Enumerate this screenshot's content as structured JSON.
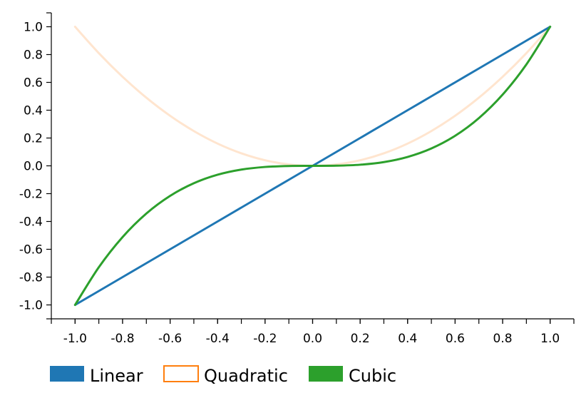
{
  "chart_data": {
    "type": "line",
    "xlim": [
      -1.1,
      1.1
    ],
    "ylim": [
      -1.1,
      1.1
    ],
    "x_ticks": [
      -1.0,
      -0.8,
      -0.6,
      -0.4,
      -0.2,
      0.0,
      0.2,
      0.4,
      0.6,
      0.8,
      1.0
    ],
    "x_tick_labels": [
      "-1.0",
      "-0.8",
      "-0.6",
      "-0.4",
      "-0.2",
      "0.0",
      "0.2",
      "0.4",
      "0.6",
      "0.8",
      "1.0"
    ],
    "y_ticks": [
      1.0,
      0.8,
      0.6,
      0.4,
      0.2,
      0.0,
      -0.2,
      -0.4,
      -0.6,
      -0.8,
      -1.0
    ],
    "y_tick_labels": [
      "1.0",
      "0.8",
      "0.6",
      "0.4",
      "0.2",
      "0.0",
      "-0.2",
      "-0.4",
      "-0.6",
      "-0.8",
      "-1.0"
    ],
    "x": [
      -1.0,
      -0.9,
      -0.8,
      -0.7,
      -0.6,
      -0.5,
      -0.4,
      -0.3,
      -0.2,
      -0.1,
      0.0,
      0.1,
      0.2,
      0.3,
      0.4,
      0.5,
      0.6,
      0.7,
      0.8,
      0.9,
      1.0
    ],
    "series": [
      {
        "name": "Linear",
        "color": "#1f77b4",
        "opacity": 1.0,
        "values": [
          -1.0,
          -0.9,
          -0.8,
          -0.7,
          -0.6,
          -0.5,
          -0.4,
          -0.3,
          -0.2,
          -0.1,
          0.0,
          0.1,
          0.2,
          0.3,
          0.4,
          0.5,
          0.6,
          0.7,
          0.8,
          0.9,
          1.0
        ]
      },
      {
        "name": "Quadratic",
        "color": "#ff7f0e",
        "opacity": 0.2,
        "values": [
          1.0,
          0.81,
          0.64,
          0.49,
          0.36,
          0.25,
          0.16,
          0.09,
          0.04,
          0.01,
          0.0,
          0.01,
          0.04,
          0.09,
          0.16,
          0.25,
          0.36,
          0.49,
          0.64,
          0.81,
          1.0
        ]
      },
      {
        "name": "Cubic",
        "color": "#2ca02c",
        "opacity": 1.0,
        "values": [
          -1.0,
          -0.729,
          -0.512,
          -0.343,
          -0.216,
          -0.125,
          -0.064,
          -0.027,
          -0.008,
          -0.001,
          0.0,
          0.001,
          0.008,
          0.027,
          0.064,
          0.125,
          0.216,
          0.343,
          0.512,
          0.729,
          1.0
        ]
      }
    ],
    "legend": {
      "placement": "bottom-left",
      "entries": [
        {
          "label": "Linear",
          "color": "#1f77b4",
          "style": "filled"
        },
        {
          "label": "Quadratic",
          "color": "#ff7f0e",
          "style": "outlined"
        },
        {
          "label": "Cubic",
          "color": "#2ca02c",
          "style": "filled"
        }
      ]
    },
    "grid": false
  }
}
